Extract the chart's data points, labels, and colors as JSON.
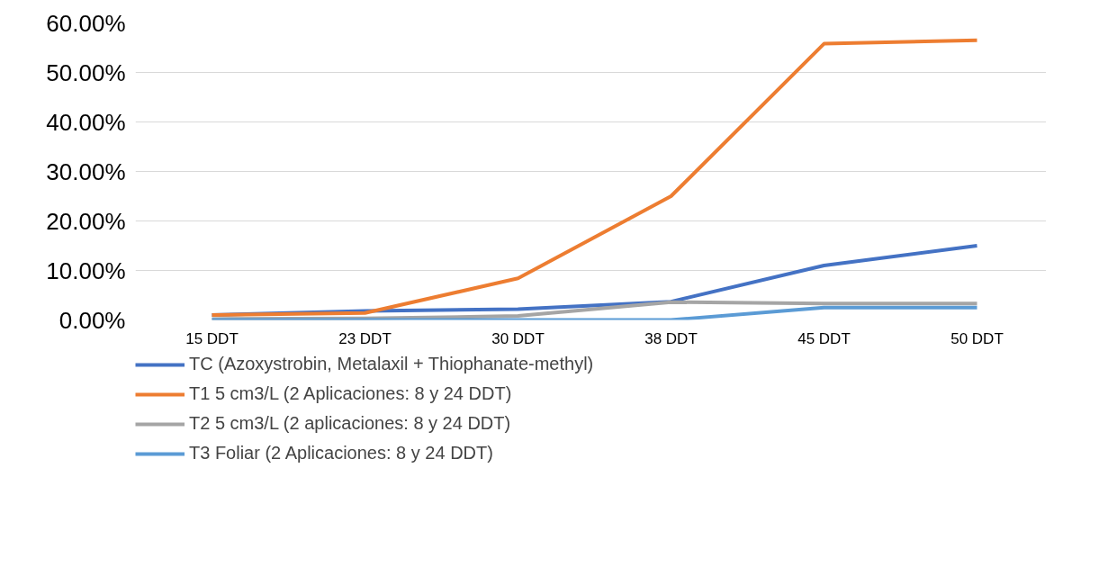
{
  "chart_data": {
    "type": "line",
    "categories": [
      "15 DDT",
      "23 DDT",
      "30 DDT",
      "38 DDT",
      "45 DDT",
      "50 DDT"
    ],
    "series": [
      {
        "name": "TC (Azoxystrobin, Metalaxil + Thiophanate-methyl)",
        "color": "#4472c4",
        "values": [
          1.0,
          1.8,
          2.2,
          3.7,
          11.0,
          15.0
        ]
      },
      {
        "name": "T1 5 cm3/L (2 Aplicaciones: 8 y 24 DDT)",
        "color": "#ed7d31",
        "values": [
          1.0,
          1.4,
          8.4,
          25.0,
          55.8,
          56.5
        ]
      },
      {
        "name": "T2 5 cm3/L (2 aplicaciones: 8 y 24 DDT)",
        "color": "#a5a5a5",
        "values": [
          0.2,
          0.3,
          0.8,
          3.6,
          3.3,
          3.3
        ]
      },
      {
        "name": "T3 Foliar (2 Aplicaciones: 8 y 24 DDT)",
        "color": "#5b9bd5",
        "values": [
          0.0,
          0.0,
          0.0,
          0.0,
          2.5,
          2.5
        ]
      }
    ],
    "ylim": [
      0,
      60
    ],
    "yticks": [
      {
        "value": 0,
        "label": "0.00%"
      },
      {
        "value": 10,
        "label": "10.00%"
      },
      {
        "value": 20,
        "label": "20.00%"
      },
      {
        "value": 30,
        "label": "30.00%"
      },
      {
        "value": 40,
        "label": "40.00%"
      },
      {
        "value": 50,
        "label": "50.00%"
      },
      {
        "value": 60,
        "label": "60.00%"
      }
    ],
    "grid": "y",
    "legend": "bottom",
    "marker": "none",
    "line_style": "solid"
  }
}
